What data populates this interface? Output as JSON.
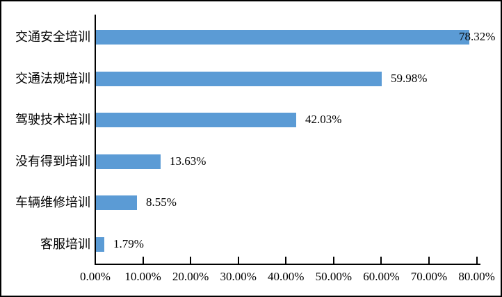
{
  "chart_data": {
    "type": "bar",
    "orientation": "horizontal",
    "title": "",
    "categories": [
      "交通安全培训",
      "交通法规培训",
      "驾驶技术培训",
      "没有得到培训",
      "车辆维修培训",
      "客服培训"
    ],
    "values": [
      78.32,
      59.98,
      42.03,
      13.63,
      8.55,
      1.79
    ],
    "value_labels": [
      "78.32%",
      "59.98%",
      "42.03%",
      "13.63%",
      "8.55%",
      "1.79%"
    ],
    "x_ticks": [
      "0.00%",
      "10.00%",
      "20.00%",
      "30.00%",
      "40.00%",
      "50.00%",
      "60.00%",
      "70.00%",
      "80.00%"
    ],
    "xlim": [
      0,
      80
    ],
    "xlabel": "",
    "ylabel": "",
    "grid": false,
    "legend": null,
    "data_label_position": "outside-end",
    "bar_color": "#5B9BD5",
    "axis_color": "#000000",
    "text_color": "#000000",
    "background_color": "#FFFFFF"
  }
}
